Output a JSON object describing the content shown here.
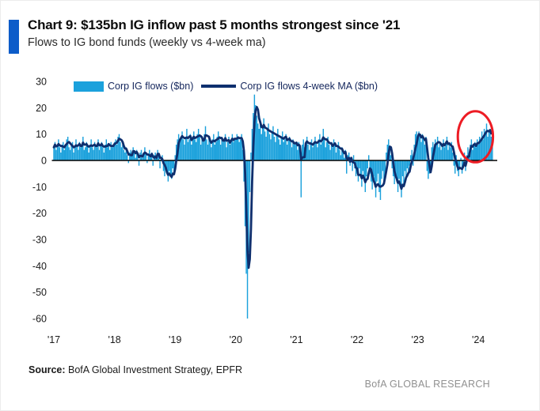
{
  "header": {
    "title": "Chart 9: $135bn IG inflow past 5 months strongest since '21",
    "subtitle": "Flows to IG bond funds (weekly vs 4-week ma)",
    "accent_color": "#0d5cc9"
  },
  "legend": {
    "text_color": "#14265c",
    "items": [
      {
        "label": "Corp IG flows ($bn)",
        "swatch": "bar",
        "color": "#1ba1dc"
      },
      {
        "label": "Corp IG flows 4-week MA ($bn)",
        "swatch": "line",
        "color": "#0e2f6e"
      }
    ]
  },
  "footer": {
    "source_label": "Source:",
    "source_text": " BofA Global Investment Strategy, EPFR",
    "watermark": "BofA GLOBAL RESEARCH"
  },
  "chart_data": {
    "type": "bar",
    "title": "Flows to IG bond funds (weekly vs 4-week ma)",
    "xlabel": "",
    "ylabel": "",
    "ylim": [
      -60,
      30
    ],
    "xlim": [
      2016.95,
      2024.35
    ],
    "grid": false,
    "legend_position": "top",
    "yticks": [
      30,
      20,
      10,
      0,
      -10,
      -20,
      -30,
      -40,
      -50,
      -60
    ],
    "xticks": [
      "'17",
      "'18",
      "'19",
      "'20",
      "'21",
      "'22",
      "'23",
      "'24"
    ],
    "xtick_years": [
      2017,
      2018,
      2019,
      2020,
      2021,
      2022,
      2023,
      2024
    ],
    "x_start_year": 2017,
    "points_per_year": 52,
    "series": [
      {
        "name": "Corp IG flows ($bn)",
        "type": "bar",
        "color": "#1ba1dc",
        "values": [
          5,
          7,
          4,
          6,
          8,
          5,
          3,
          6,
          7,
          4,
          6,
          8,
          9,
          5,
          4,
          6,
          7,
          3,
          5,
          8,
          6,
          4,
          7,
          5,
          6,
          9,
          4,
          5,
          7,
          6,
          3,
          6,
          8,
          5,
          4,
          7,
          6,
          5,
          8,
          4,
          6,
          7,
          5,
          3,
          6,
          8,
          5,
          6,
          4,
          7,
          5,
          6,
          7,
          8,
          6,
          9,
          10,
          7,
          5,
          6,
          4,
          3,
          5,
          2,
          -1,
          3,
          4,
          2,
          5,
          3,
          1,
          4,
          2,
          -2,
          3,
          4,
          1,
          2,
          5,
          3,
          -1,
          2,
          4,
          1,
          3,
          -2,
          2,
          3,
          1,
          4,
          2,
          -3,
          1,
          2,
          -4,
          -6,
          -3,
          -5,
          -8,
          -4,
          -6,
          -7,
          -3,
          -5,
          2,
          6,
          8,
          10,
          7,
          9,
          11,
          8,
          6,
          9,
          12,
          7,
          8,
          10,
          6,
          9,
          11,
          8,
          7,
          10,
          12,
          9,
          6,
          8,
          7,
          10,
          13,
          8,
          6,
          9,
          7,
          5,
          8,
          10,
          6,
          7,
          9,
          11,
          8,
          6,
          9,
          7,
          8,
          10,
          5,
          7,
          9,
          6,
          8,
          10,
          7,
          8,
          8,
          10,
          9,
          7,
          8,
          10,
          4,
          -8,
          -25,
          -43,
          -60,
          -35,
          -12,
          3,
          12,
          18,
          25,
          21,
          17,
          14,
          12,
          15,
          10,
          13,
          16,
          11,
          9,
          12,
          14,
          10,
          8,
          11,
          13,
          9,
          7,
          10,
          12,
          8,
          6,
          9,
          11,
          7,
          8,
          10,
          6,
          8,
          9,
          7,
          5,
          8,
          6,
          7,
          6,
          4,
          7,
          5,
          -14,
          6,
          8,
          5,
          7,
          9,
          6,
          4,
          7,
          8,
          5,
          6,
          9,
          7,
          5,
          8,
          10,
          6,
          7,
          12,
          8,
          5,
          7,
          9,
          6,
          4,
          7,
          5,
          8,
          6,
          3,
          5,
          7,
          4,
          2,
          5,
          3,
          1,
          4,
          -5,
          2,
          3,
          -2,
          1,
          -4,
          2,
          -3,
          -6,
          -5,
          -8,
          -3,
          -6,
          -10,
          -4,
          -7,
          -12,
          -6,
          -3,
          2,
          -5,
          -8,
          -11,
          -6,
          -9,
          -14,
          -8,
          -5,
          -12,
          -15,
          -7,
          -4,
          -9,
          -6,
          3,
          6,
          8,
          4,
          2,
          -3,
          -6,
          -9,
          -5,
          -8,
          -12,
          -7,
          -10,
          -14,
          -6,
          -9,
          -4,
          -7,
          -3,
          -5,
          -2,
          2,
          4,
          -2,
          6,
          10,
          11,
          8,
          11,
          9,
          7,
          10,
          8,
          6,
          9,
          -4,
          -7,
          -5,
          -2,
          5,
          7,
          4,
          8,
          6,
          9,
          5,
          7,
          4,
          6,
          8,
          5,
          7,
          9,
          4,
          6,
          5,
          7,
          3,
          -2,
          -5,
          2,
          -4,
          -6,
          -3,
          1,
          -5,
          -2,
          3,
          -4,
          2,
          5,
          3,
          6,
          8,
          4,
          6,
          7,
          5,
          8,
          6,
          9,
          7,
          11,
          8,
          12,
          10,
          14,
          9,
          11,
          12,
          9,
          10
        ]
      },
      {
        "name": "Corp IG flows 4-week MA ($bn)",
        "type": "line",
        "color": "#0e2f6e",
        "derived_from": "4-week trailing moving average of bar series"
      }
    ],
    "annotation": {
      "shape": "ellipse",
      "color": "#ed1c24",
      "center_year": 2023.95,
      "center_value": 9,
      "rx_years": 0.29,
      "ry_values": 9.7
    },
    "zero_axis_color": "#000000"
  }
}
